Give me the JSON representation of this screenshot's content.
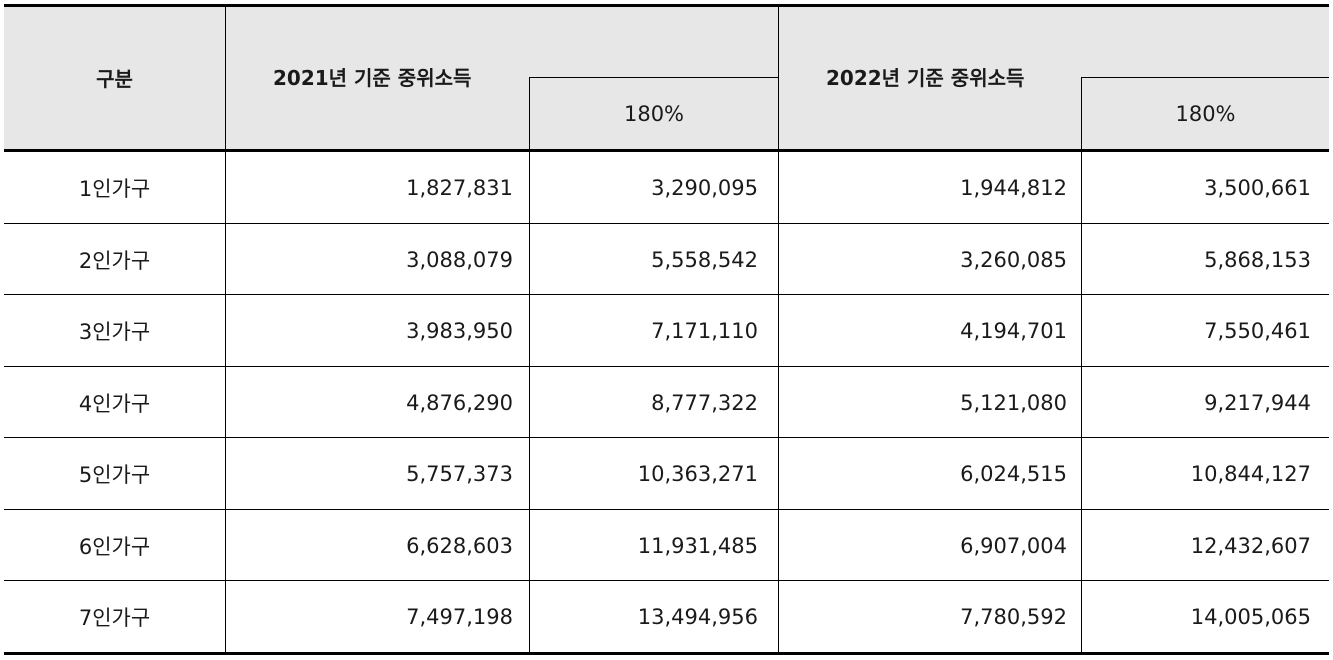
{
  "header": {
    "category": "구분",
    "group_2021": "2021년 기준 중위소득",
    "group_2022": "2022년 기준 중위소득",
    "pct_2021": "180%",
    "pct_2022": "180%"
  },
  "rows": [
    {
      "label": "1인가구",
      "v2021": "1,827,831",
      "p2021": "3,290,095",
      "v2022": "1,944,812",
      "p2022": "3,500,661"
    },
    {
      "label": "2인가구",
      "v2021": "3,088,079",
      "p2021": "5,558,542",
      "v2022": "3,260,085",
      "p2022": "5,868,153"
    },
    {
      "label": "3인가구",
      "v2021": "3,983,950",
      "p2021": "7,171,110",
      "v2022": "4,194,701",
      "p2022": "7,550,461"
    },
    {
      "label": "4인가구",
      "v2021": "4,876,290",
      "p2021": "8,777,322",
      "v2022": "5,121,080",
      "p2022": "9,217,944"
    },
    {
      "label": "5인가구",
      "v2021": "5,757,373",
      "p2021": "10,363,271",
      "v2022": "6,024,515",
      "p2022": "10,844,127"
    },
    {
      "label": "6인가구",
      "v2021": "6,628,603",
      "p2021": "11,931,485",
      "v2022": "6,907,004",
      "p2022": "12,432,607"
    },
    {
      "label": "7인가구",
      "v2021": "7,497,198",
      "p2021": "13,494,956",
      "v2022": "7,780,592",
      "p2022": "14,005,065"
    }
  ]
}
